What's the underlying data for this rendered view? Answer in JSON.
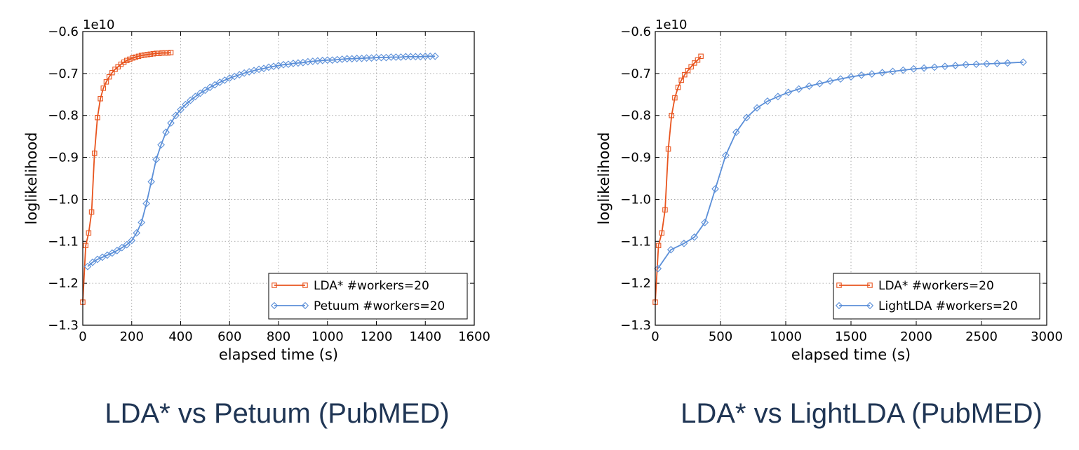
{
  "chart_data": [
    {
      "type": "line",
      "caption": "LDA* vs Petuum (PubMED)",
      "xlabel": "elapsed time (s)",
      "ylabel": "loglikelihood",
      "offset_label": "1e10",
      "xlim": [
        0,
        1600
      ],
      "ylim": [
        -1.3,
        -0.6
      ],
      "xticks": [
        0,
        200,
        400,
        600,
        800,
        1000,
        1200,
        1400,
        1600
      ],
      "xtick_labels": [
        "0",
        "200",
        "400",
        "600",
        "800",
        "1000",
        "1200",
        "1400",
        "1600"
      ],
      "yticks": [
        -1.3,
        -1.2,
        -1.1,
        -1.0,
        -0.9,
        -0.8,
        -0.7,
        -0.6
      ],
      "ytick_labels": [
        "−1.3",
        "−1.2",
        "−1.1",
        "−1.0",
        "−0.9",
        "−0.8",
        "−0.7",
        "−0.6"
      ],
      "grid": true,
      "legend_position": "lower-right",
      "series": [
        {
          "name": "LDA* #workers=20",
          "color": "#e8541e",
          "marker": "square",
          "x": [
            0,
            12,
            24,
            36,
            48,
            60,
            72,
            84,
            96,
            108,
            120,
            132,
            144,
            156,
            168,
            180,
            192,
            204,
            216,
            228,
            240,
            252,
            264,
            276,
            288,
            300,
            312,
            324,
            336,
            348,
            360
          ],
          "y": [
            -1.245,
            -1.11,
            -1.08,
            -1.03,
            -0.89,
            -0.805,
            -0.76,
            -0.735,
            -0.72,
            -0.708,
            -0.698,
            -0.69,
            -0.684,
            -0.678,
            -0.673,
            -0.669,
            -0.666,
            -0.663,
            -0.661,
            -0.659,
            -0.657,
            -0.656,
            -0.655,
            -0.654,
            -0.653,
            -0.652,
            -0.652,
            -0.651,
            -0.651,
            -0.651,
            -0.65
          ]
        },
        {
          "name": "Petuum #workers=20",
          "color": "#5b8fd8",
          "marker": "diamond",
          "x": [
            20,
            40,
            60,
            80,
            100,
            120,
            140,
            160,
            180,
            200,
            220,
            240,
            260,
            280,
            300,
            320,
            340,
            360,
            380,
            400,
            420,
            440,
            460,
            480,
            500,
            520,
            540,
            560,
            580,
            600,
            620,
            640,
            660,
            680,
            700,
            720,
            740,
            760,
            780,
            800,
            820,
            840,
            860,
            880,
            900,
            920,
            940,
            960,
            980,
            1000,
            1020,
            1040,
            1060,
            1080,
            1100,
            1120,
            1140,
            1160,
            1180,
            1200,
            1220,
            1240,
            1260,
            1280,
            1300,
            1320,
            1340,
            1360,
            1380,
            1400,
            1420,
            1440
          ],
          "y": [
            -1.16,
            -1.15,
            -1.143,
            -1.138,
            -1.133,
            -1.128,
            -1.122,
            -1.115,
            -1.108,
            -1.098,
            -1.08,
            -1.055,
            -1.01,
            -0.958,
            -0.905,
            -0.87,
            -0.84,
            -0.818,
            -0.8,
            -0.786,
            -0.774,
            -0.764,
            -0.755,
            -0.747,
            -0.74,
            -0.733,
            -0.727,
            -0.721,
            -0.716,
            -0.711,
            -0.707,
            -0.703,
            -0.699,
            -0.696,
            -0.693,
            -0.69,
            -0.688,
            -0.685,
            -0.683,
            -0.681,
            -0.679,
            -0.678,
            -0.676,
            -0.675,
            -0.674,
            -0.672,
            -0.671,
            -0.67,
            -0.669,
            -0.668,
            -0.668,
            -0.667,
            -0.666,
            -0.665,
            -0.665,
            -0.664,
            -0.664,
            -0.663,
            -0.663,
            -0.662,
            -0.662,
            -0.662,
            -0.661,
            -0.661,
            -0.661,
            -0.66,
            -0.66,
            -0.66,
            -0.66,
            -0.659,
            -0.659,
            -0.659
          ]
        }
      ]
    },
    {
      "type": "line",
      "caption": "LDA* vs LightLDA (PubMED)",
      "xlabel": "elapsed time (s)",
      "ylabel": "loglikelihood",
      "offset_label": "1e10",
      "xlim": [
        0,
        3000
      ],
      "ylim": [
        -1.3,
        -0.6
      ],
      "xticks": [
        0,
        500,
        1000,
        1500,
        2000,
        2500,
        3000
      ],
      "xtick_labels": [
        "0",
        "500",
        "1000",
        "1500",
        "2000",
        "2500",
        "3000"
      ],
      "yticks": [
        -1.3,
        -1.2,
        -1.1,
        -1.0,
        -0.9,
        -0.8,
        -0.7,
        -0.6
      ],
      "ytick_labels": [
        "−1.3",
        "−1.2",
        "−1.1",
        "−1.0",
        "−0.9",
        "−0.8",
        "−0.7",
        "−0.6"
      ],
      "grid": true,
      "legend_position": "lower-right",
      "series": [
        {
          "name": "LDA* #workers=20",
          "color": "#e8541e",
          "marker": "square",
          "x": [
            0,
            25,
            50,
            75,
            100,
            125,
            150,
            175,
            200,
            225,
            250,
            275,
            300,
            325,
            350
          ],
          "y": [
            -1.245,
            -1.11,
            -1.08,
            -1.025,
            -0.88,
            -0.8,
            -0.758,
            -0.733,
            -0.716,
            -0.703,
            -0.693,
            -0.684,
            -0.675,
            -0.668,
            -0.659
          ]
        },
        {
          "name": "LightLDA #workers=20",
          "color": "#5b8fd8",
          "marker": "diamond",
          "x": [
            20,
            120,
            220,
            300,
            380,
            460,
            540,
            620,
            700,
            780,
            860,
            940,
            1020,
            1100,
            1180,
            1260,
            1340,
            1420,
            1500,
            1580,
            1660,
            1740,
            1820,
            1900,
            1980,
            2060,
            2140,
            2220,
            2300,
            2380,
            2460,
            2540,
            2620,
            2700,
            2820
          ],
          "y": [
            -1.165,
            -1.12,
            -1.105,
            -1.09,
            -1.055,
            -0.975,
            -0.895,
            -0.84,
            -0.805,
            -0.782,
            -0.766,
            -0.755,
            -0.745,
            -0.737,
            -0.73,
            -0.724,
            -0.718,
            -0.713,
            -0.708,
            -0.704,
            -0.701,
            -0.698,
            -0.695,
            -0.692,
            -0.689,
            -0.687,
            -0.685,
            -0.683,
            -0.681,
            -0.679,
            -0.678,
            -0.677,
            -0.676,
            -0.675,
            -0.673
          ]
        }
      ]
    }
  ]
}
